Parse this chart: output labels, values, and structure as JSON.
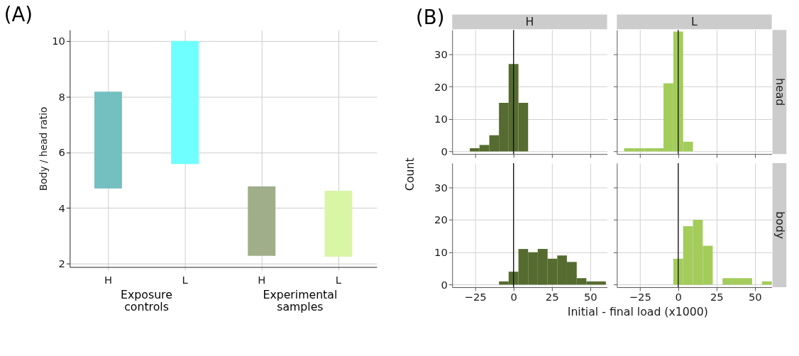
{
  "chart_data": [
    {
      "type": "bar",
      "title": "(A)",
      "ylabel": "Body / head ratio",
      "categories": [
        "H",
        "L",
        "H",
        "L"
      ],
      "base": [
        4.7,
        5.58,
        2.28,
        2.25
      ],
      "values": [
        3.48,
        4.42,
        2.5,
        2.37
      ],
      "colors": [
        "#74bfc0",
        "#70ffff",
        "#a0ae8a",
        "#d9f5a6"
      ],
      "ylim": [
        1.88,
        10.4
      ],
      "yticks": [
        2,
        4,
        6,
        8,
        10
      ],
      "grid": true,
      "annotations": [
        "Exposure controls",
        "Experimental samples"
      ]
    },
    {
      "type": "histogram",
      "title": "(B)",
      "subtitle": "H",
      "color": "#556b2f",
      "bins": [
        -28.5,
        -22.2,
        -15.8,
        -9.5,
        -3.2,
        3.2,
        9.5
      ],
      "values": [
        1,
        2,
        5,
        15,
        27,
        15
      ],
      "xlim": [
        -40,
        61
      ],
      "ylim": [
        -0.8,
        37.5
      ],
      "xticks": [
        -25,
        0,
        25,
        50
      ],
      "yticks": [
        0,
        10,
        20,
        30
      ],
      "grid": true,
      "tick_labels": "y",
      "ref_lines": [
        {
          "axis": "x",
          "value": 0,
          "color": "#000000"
        }
      ]
    },
    {
      "type": "histogram",
      "subtitle": "L",
      "y2label": "head",
      "color": "#a3cc5b",
      "bins": [
        -35.3,
        -28.9,
        -22.4,
        -16.0,
        -9.6,
        -3.2,
        3.2,
        9.6
      ],
      "values": [
        1,
        1,
        1,
        1,
        21,
        37,
        3
      ],
      "xlim": [
        -40,
        61
      ],
      "ylim": [
        -0.8,
        37.5
      ],
      "xticks": [
        -25,
        0,
        25,
        50
      ],
      "yticks": [
        0,
        10,
        20,
        30
      ],
      "grid": true,
      "tick_labels": false,
      "ref_lines": [
        {
          "axis": "x",
          "value": 0,
          "color": "#000000"
        }
      ]
    },
    {
      "type": "histogram",
      "ylabel": "Count",
      "xlabel": "Initial - final load (x1000)",
      "color": "#556b2f",
      "bins": [
        -9.5,
        -3.2,
        3.2,
        9.5,
        15.8,
        22.2,
        28.5,
        34.8,
        41.2,
        47.5,
        53.8,
        60.2
      ],
      "values": [
        1,
        4,
        11,
        10,
        11,
        8,
        9,
        7,
        2,
        1,
        1
      ],
      "xlim": [
        -40,
        61
      ],
      "ylim": [
        -0.8,
        37.5
      ],
      "xticks": [
        -25,
        0,
        25,
        50
      ],
      "yticks": [
        0,
        10,
        20,
        30
      ],
      "grid": true,
      "ref_lines": [
        {
          "axis": "x",
          "value": 0,
          "color": "#000000"
        }
      ]
    },
    {
      "type": "histogram",
      "y2label": "body",
      "color": "#a3cc5b",
      "bins": [
        -3.2,
        3.2,
        9.6,
        16.0,
        22.5,
        28.9,
        35.3,
        41.7,
        48.2,
        54.6,
        61.0
      ],
      "values": [
        8,
        18,
        20,
        12,
        0,
        2,
        2,
        2,
        0,
        1
      ],
      "xlim": [
        -40,
        61
      ],
      "ylim": [
        -0.8,
        37.5
      ],
      "xticks": [
        -25,
        0,
        25,
        50
      ],
      "yticks": [
        0,
        10,
        20,
        30
      ],
      "grid": true,
      "tick_labels": "x",
      "ref_lines": [
        {
          "axis": "x",
          "value": 0,
          "color": "#000000"
        }
      ]
    }
  ]
}
